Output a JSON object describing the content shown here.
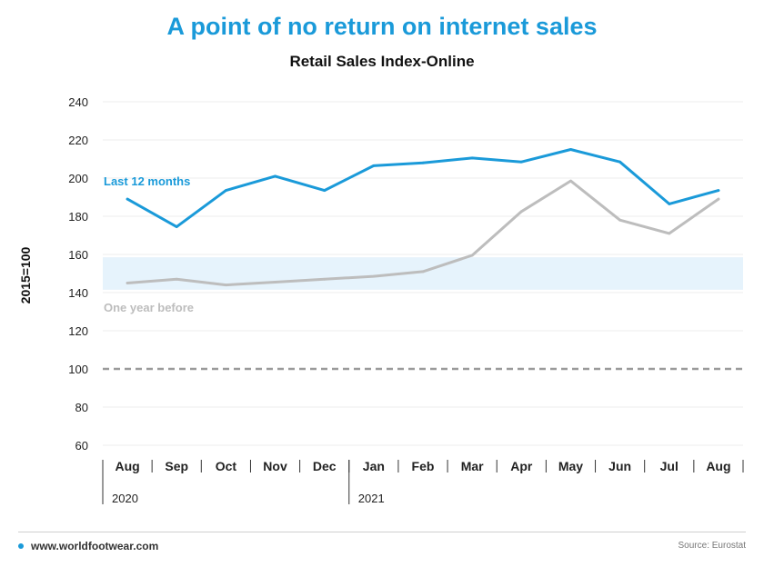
{
  "title": "A point of no return on internet sales",
  "subtitle": "Retail Sales Index-Online",
  "footer": {
    "website": "www.worldfootwear.com",
    "source": "Source: Eurostat"
  },
  "colors": {
    "accent": "#1a9ad9",
    "grey_series": "#bdbdbd",
    "band": "#e6f3fc",
    "baseline": "#9a9a9a"
  },
  "chart_data": {
    "type": "line",
    "ylabel": "2015=100",
    "ylim": [
      60,
      240
    ],
    "yticks": [
      60,
      80,
      100,
      120,
      140,
      160,
      180,
      200,
      220,
      240
    ],
    "categories": [
      "Aug",
      "Sep",
      "Oct",
      "Nov",
      "Dec",
      "Jan",
      "Feb",
      "Mar",
      "Apr",
      "May",
      "Jun",
      "Jul",
      "Aug"
    ],
    "years": [
      {
        "label": "2020",
        "start_index": 0
      },
      {
        "label": "2021",
        "start_index": 5
      }
    ],
    "series": [
      {
        "name": "Last 12 months",
        "color": "#1a9ad9",
        "values": [
          189,
          174.5,
          193.5,
          201,
          193.5,
          206.5,
          208,
          210.5,
          208.5,
          215,
          208.5,
          186.5,
          193.5
        ]
      },
      {
        "name": "One year before",
        "color": "#bdbdbd",
        "values": [
          145,
          147,
          144,
          145.5,
          147,
          148.5,
          151,
          159.5,
          182.5,
          198.5,
          178,
          171,
          189
        ]
      }
    ],
    "reference_line": {
      "value": 100,
      "style": "dashed"
    },
    "highlight_band": [
      141.5,
      158.5
    ],
    "grid": true
  }
}
